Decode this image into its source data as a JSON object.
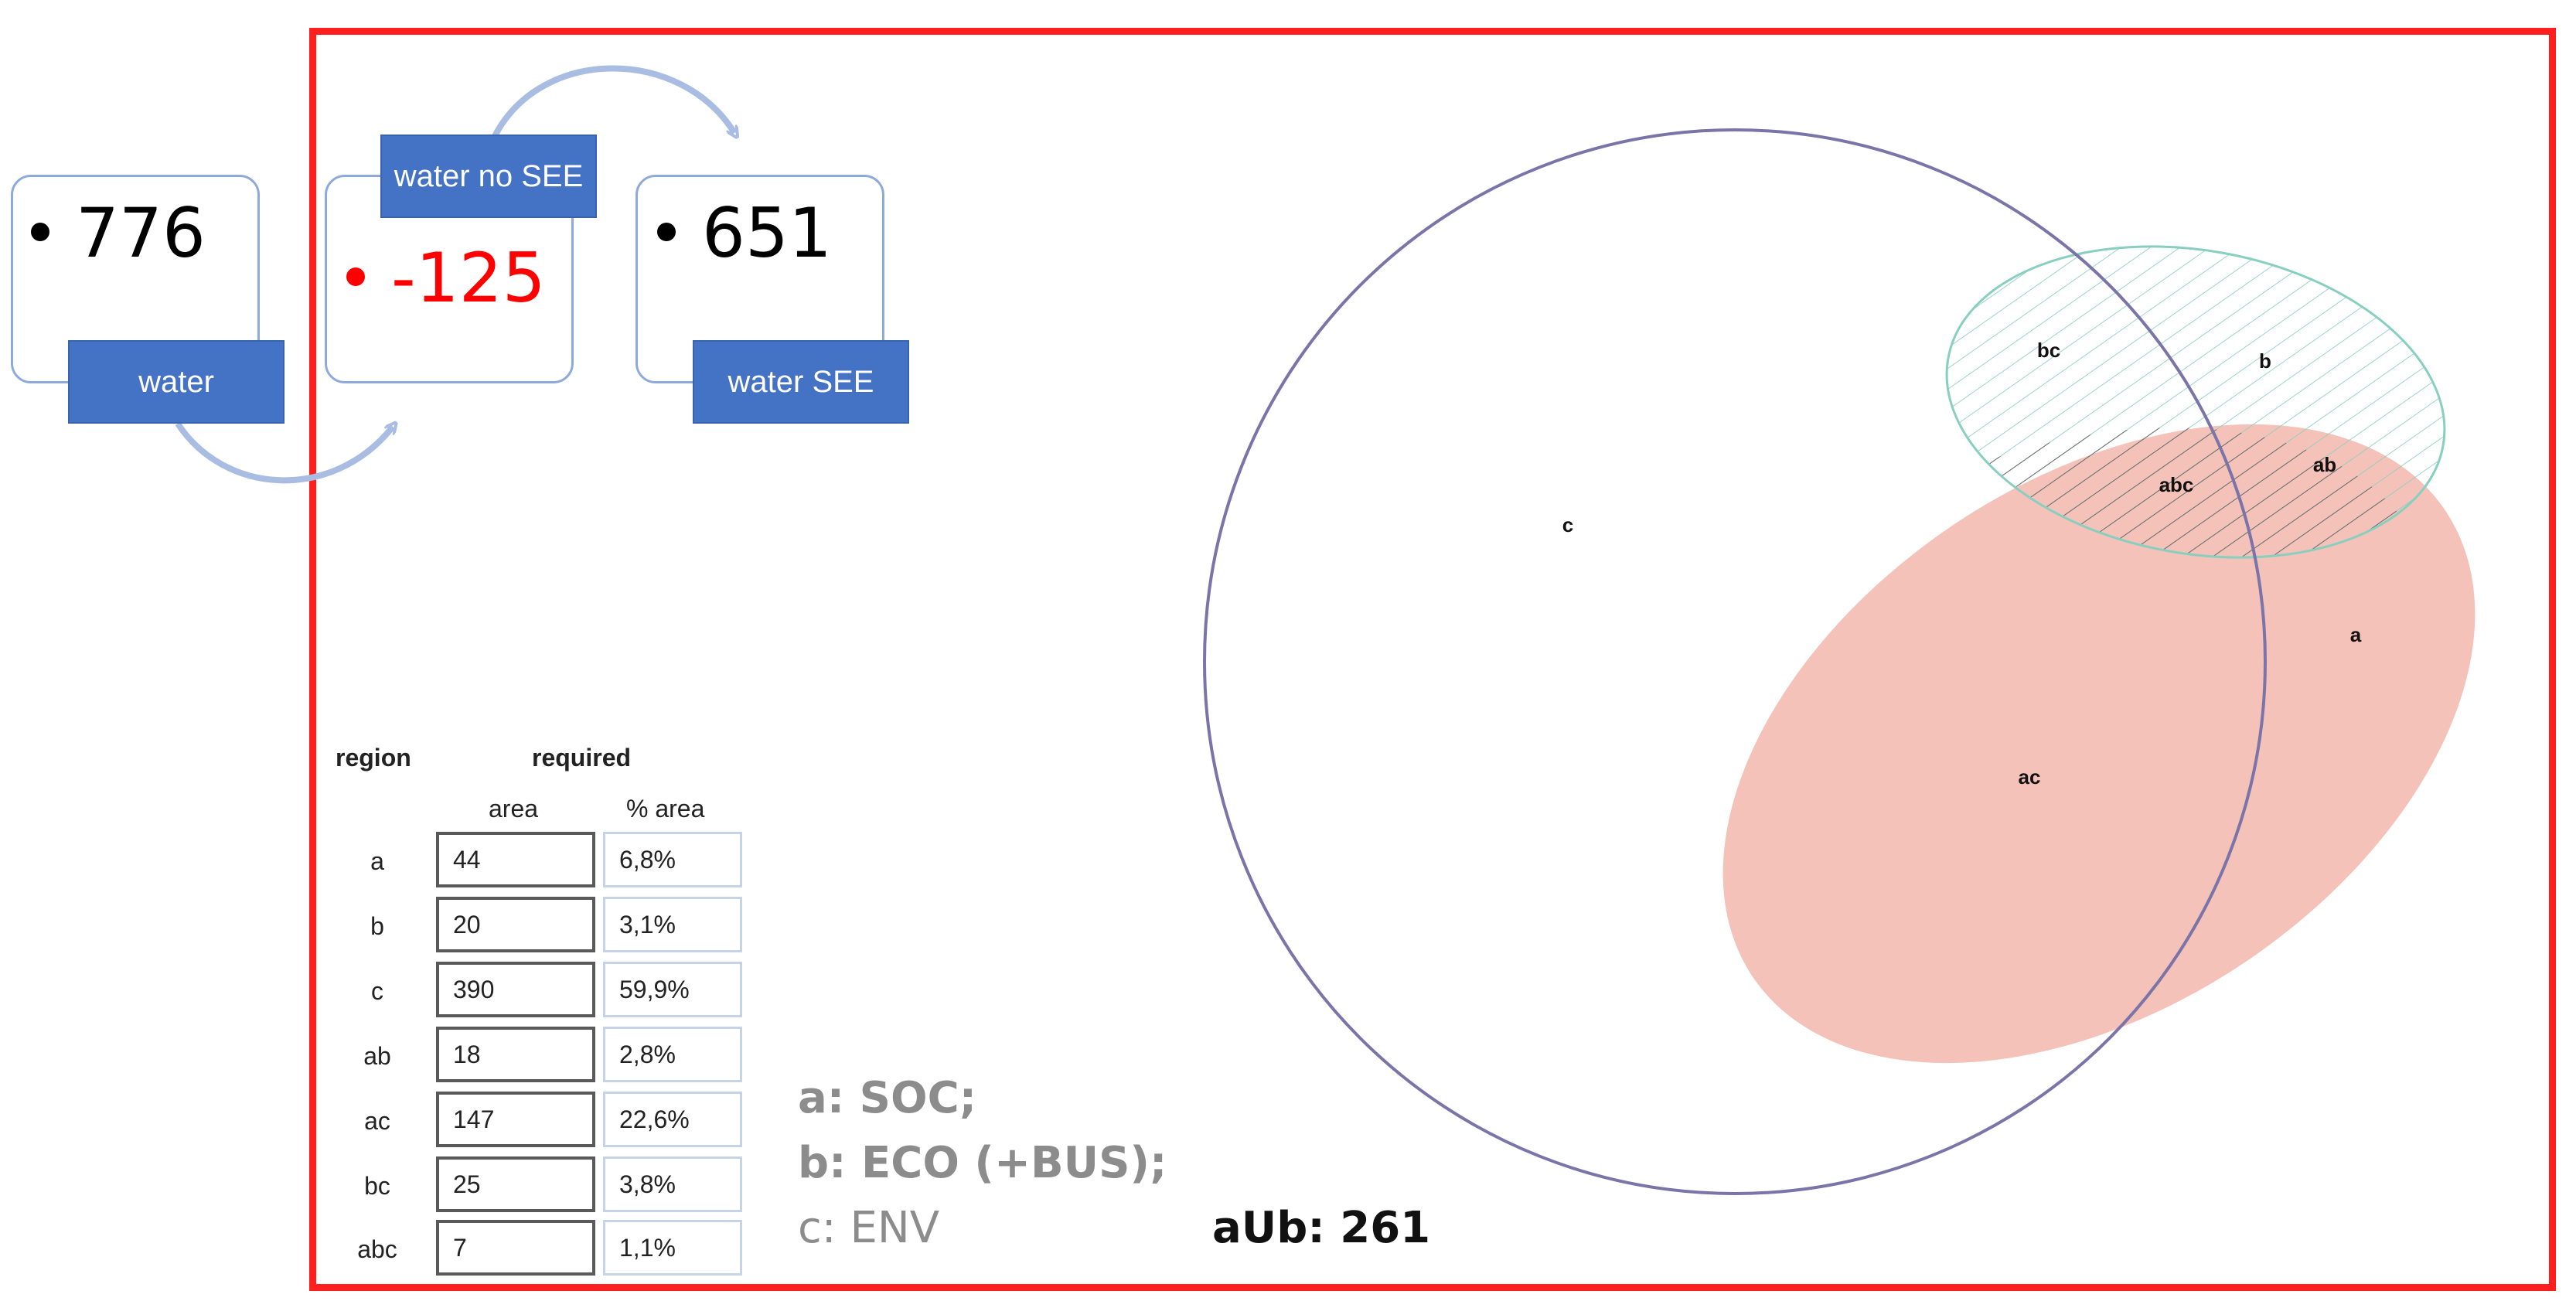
{
  "flow": {
    "water": {
      "value": "776",
      "tag": "water"
    },
    "water_no_see": {
      "value": "-125",
      "tag": "water no SEE"
    },
    "water_see": {
      "value": "651",
      "tag": "water SEE"
    }
  },
  "table": {
    "header_region": "region",
    "header_required": "required",
    "sub_area": "area",
    "sub_pct": "% area",
    "rows": [
      {
        "region": "a",
        "area": "44",
        "pct": "6,8%"
      },
      {
        "region": "b",
        "area": "20",
        "pct": "3,1%"
      },
      {
        "region": "c",
        "area": "390",
        "pct": "59,9%"
      },
      {
        "region": "ab",
        "area": "18",
        "pct": "2,8%"
      },
      {
        "region": "ac",
        "area": "147",
        "pct": "22,6%"
      },
      {
        "region": "bc",
        "area": "25",
        "pct": "3,8%"
      },
      {
        "region": "abc",
        "area": "7",
        "pct": "1,1%"
      }
    ]
  },
  "legend": {
    "a": "a: SOC;",
    "b": "b: ECO (+BUS);",
    "c": "c: ENV"
  },
  "union": "aUb: 261",
  "venn": {
    "labels": {
      "c": "c",
      "bc": "bc",
      "b": "b",
      "abc": "abc",
      "ab": "ab",
      "a": "a",
      "ac": "ac"
    },
    "colors": {
      "circle_c": "#7a74a8",
      "ellipse_a": "#f4c2b8",
      "ellipse_b_stroke": "#88cfc0",
      "hatch": "#6a6a6a"
    }
  }
}
